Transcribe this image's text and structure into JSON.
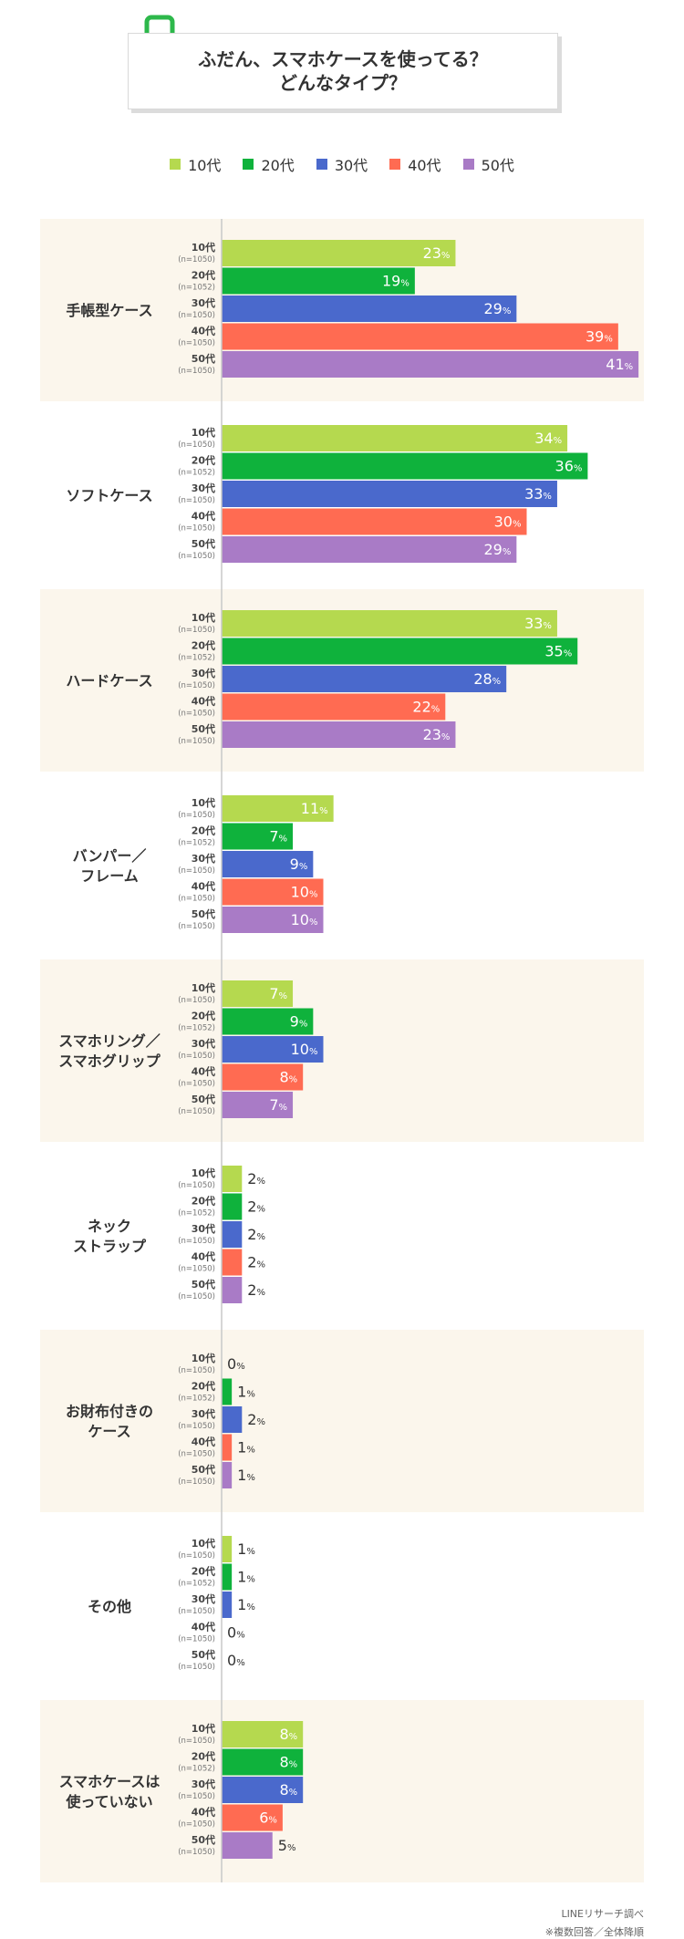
{
  "title": {
    "line1": "ふだん、スマホケースを使ってる？",
    "line2": "どんなタイプ？"
  },
  "icon": "smartphone-icon",
  "colors": {
    "panel_bg": "#fbf6ec",
    "axis": "#c8c8c8",
    "series": [
      "#b5d94f",
      "#0fb23c",
      "#4a69cc",
      "#ff6b52",
      "#a97bc6"
    ]
  },
  "legend": [
    "10代",
    "20代",
    "30代",
    "40代",
    "50代"
  ],
  "source": {
    "line1": "LINEリサーチ調べ",
    "line2": "※複数回答／全体降順"
  },
  "chart_data": {
    "type": "bar",
    "orientation": "horizontal",
    "unit": "%",
    "age_groups": [
      {
        "label": "10代",
        "n": "(n=1050)"
      },
      {
        "label": "20代",
        "n": "(n=1052)"
      },
      {
        "label": "30代",
        "n": "(n=1050)"
      },
      {
        "label": "40代",
        "n": "(n=1050)"
      },
      {
        "label": "50代",
        "n": "(n=1050)"
      }
    ],
    "categories": [
      {
        "lines": [
          "手帳型ケース"
        ],
        "values": [
          23,
          19,
          29,
          39,
          41
        ]
      },
      {
        "lines": [
          "ソフトケース"
        ],
        "values": [
          34,
          36,
          33,
          30,
          29
        ]
      },
      {
        "lines": [
          "ハードケース"
        ],
        "values": [
          33,
          35,
          28,
          22,
          23
        ]
      },
      {
        "lines": [
          "バンパー／",
          "フレーム"
        ],
        "values": [
          11,
          7,
          9,
          10,
          10
        ]
      },
      {
        "lines": [
          "スマホリング／",
          "スマホグリップ"
        ],
        "values": [
          7,
          9,
          10,
          8,
          7
        ]
      },
      {
        "lines": [
          "ネック",
          "ストラップ"
        ],
        "values": [
          2,
          2,
          2,
          2,
          2
        ]
      },
      {
        "lines": [
          "お財布付きの",
          "ケース"
        ],
        "values": [
          0,
          1,
          2,
          1,
          1
        ]
      },
      {
        "lines": [
          "その他"
        ],
        "values": [
          1,
          1,
          1,
          0,
          0
        ]
      },
      {
        "lines": [
          "スマホケースは",
          "使っていない"
        ],
        "values": [
          8,
          8,
          8,
          6,
          5
        ]
      }
    ]
  }
}
